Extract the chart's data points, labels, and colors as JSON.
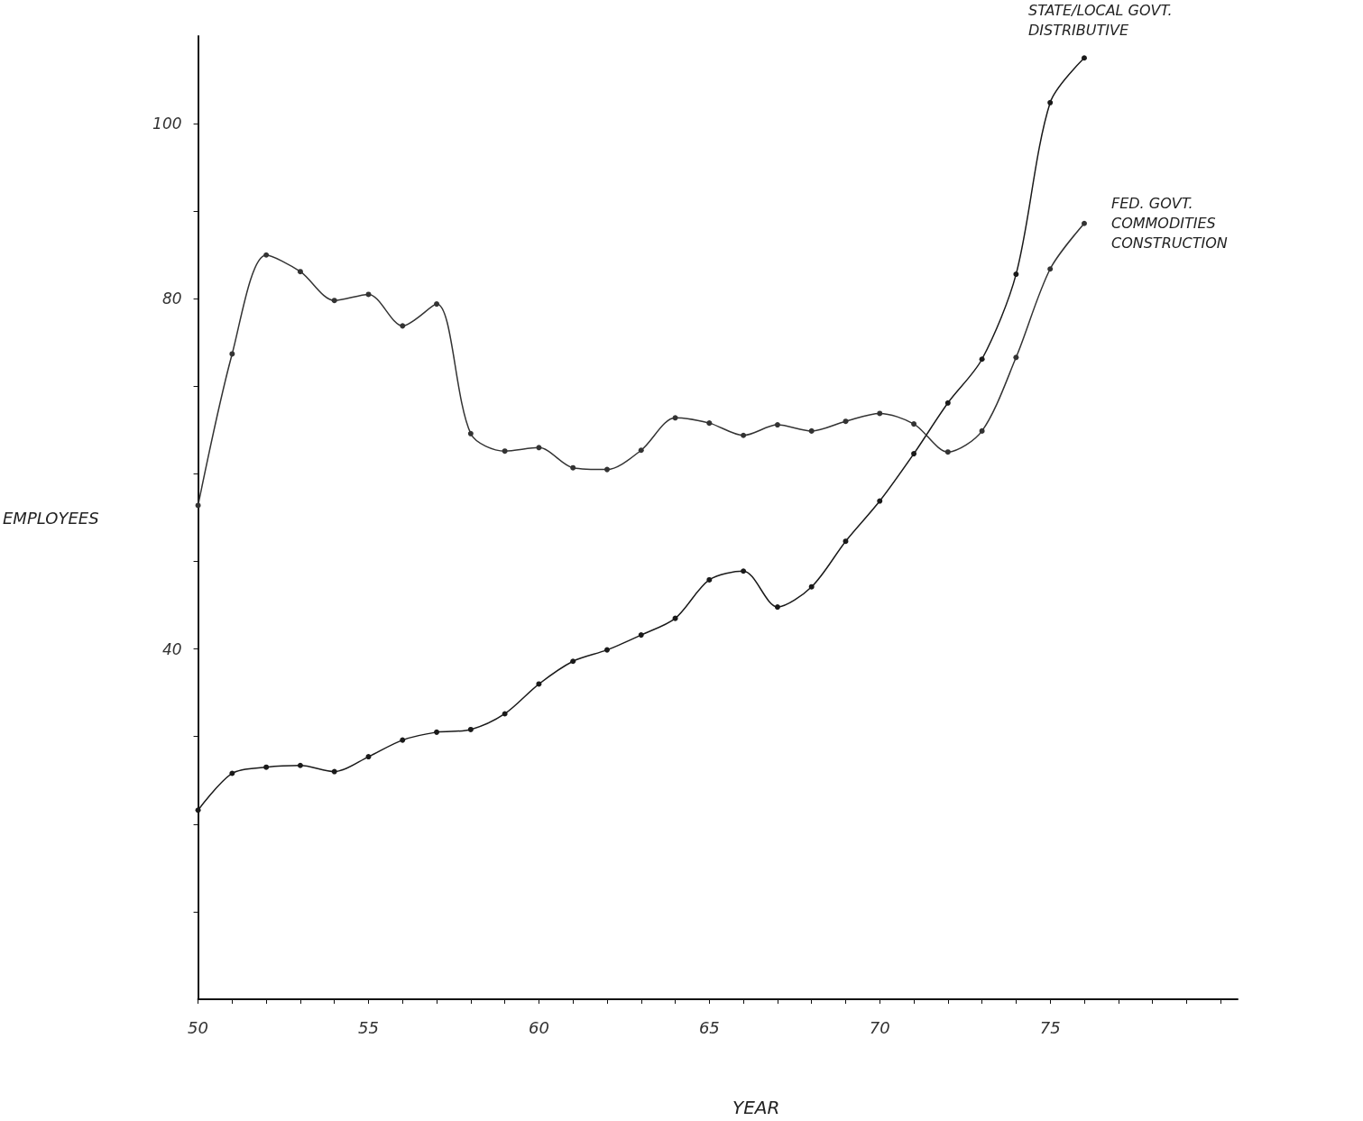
{
  "chart_data": {
    "type": "line",
    "xlabel": "YEAR",
    "ylabel": "EMPLOYEES",
    "x": [
      50,
      51,
      52,
      53,
      54,
      55,
      56,
      57,
      58,
      59,
      60,
      61,
      62,
      63,
      64,
      65,
      66,
      67,
      68,
      69,
      70,
      71,
      72,
      73,
      74,
      75,
      76
    ],
    "series": [
      {
        "name": "STATE/LOCAL GOVT. DISTRIBUTIVE",
        "color": "#1a1a1a",
        "values": [
          21.6,
          25.8,
          26.5,
          26.7,
          26.0,
          27.7,
          29.6,
          30.5,
          30.8,
          32.6,
          36.0,
          38.6,
          39.9,
          41.6,
          43.5,
          47.9,
          48.9,
          44.8,
          47.1,
          52.3,
          56.9,
          62.3,
          68.1,
          73.1,
          82.8,
          102.4,
          107.5
        ]
      },
      {
        "name": "FED. GOVT. COMMODITIES CONSTRUCTION",
        "color": "#333333",
        "values": [
          56.4,
          73.7,
          85.0,
          83.1,
          79.8,
          80.5,
          76.9,
          79.4,
          64.6,
          62.6,
          63.0,
          60.7,
          60.5,
          62.7,
          66.4,
          65.8,
          64.4,
          65.6,
          64.9,
          66.0,
          66.9,
          65.7,
          62.5,
          64.9,
          73.3,
          83.4,
          88.6
        ]
      }
    ],
    "xlim": [
      50,
      80.5
    ],
    "xticks": [
      50,
      {
        "value": 51,
        "label": null
      },
      {
        "value": 52,
        "label": null
      },
      {
        "value": 53,
        "label": null
      },
      {
        "value": 54,
        "label": null
      },
      55,
      {
        "value": 56,
        "label": null
      },
      {
        "value": 57,
        "label": null
      },
      {
        "value": 58,
        "label": null
      },
      {
        "value": 59,
        "label": null
      },
      60,
      {
        "value": 61,
        "label": null
      },
      {
        "value": 62,
        "label": null
      },
      {
        "value": 63,
        "label": null
      },
      {
        "value": 64,
        "label": null
      },
      65,
      {
        "value": 66,
        "label": null
      },
      {
        "value": 67,
        "label": null
      },
      {
        "value": 68,
        "label": null
      },
      {
        "value": 69,
        "label": null
      },
      70,
      {
        "value": 71,
        "label": null
      },
      {
        "value": 72,
        "label": null
      },
      {
        "value": 73,
        "label": null
      },
      {
        "value": 74,
        "label": null
      },
      75,
      {
        "value": 76,
        "label": null
      },
      {
        "value": 77,
        "label": null
      },
      {
        "value": 78,
        "label": null
      },
      {
        "value": 79,
        "label": null
      },
      {
        "value": 80,
        "label": null
      }
    ],
    "ylim": [
      0,
      110
    ],
    "yticks": [
      {
        "value": 10,
        "label": null
      },
      {
        "value": 20,
        "label": null
      },
      {
        "value": 30,
        "label": null
      },
      40,
      {
        "value": 50,
        "label": null
      },
      {
        "value": 60,
        "label": null
      },
      {
        "value": 70,
        "label": null
      },
      80,
      {
        "value": 90,
        "label": null
      },
      100
    ],
    "grid": false,
    "legend": false,
    "marker": "circle",
    "line_style": "solid"
  }
}
